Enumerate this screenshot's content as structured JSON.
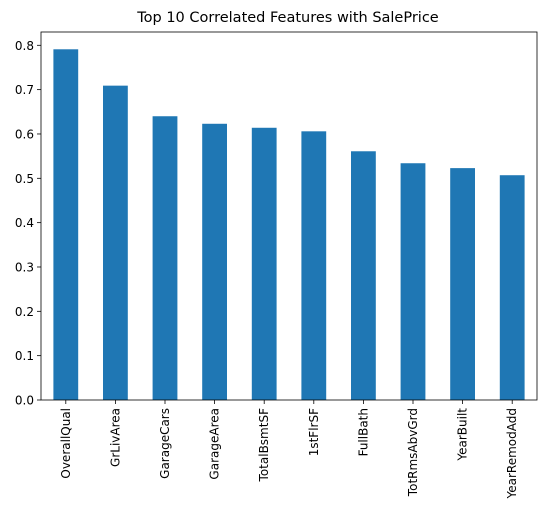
{
  "chart_data": {
    "type": "bar",
    "title": "Top 10 Correlated Features with SalePrice",
    "xlabel": "",
    "ylabel": "",
    "categories": [
      "OverallQual",
      "GrLivArea",
      "GarageCars",
      "GarageArea",
      "TotalBsmtSF",
      "1stFlrSF",
      "FullBath",
      "TotRmsAbvGrd",
      "YearBuilt",
      "YearRemodAdd"
    ],
    "values": [
      0.791,
      0.709,
      0.64,
      0.623,
      0.614,
      0.606,
      0.561,
      0.534,
      0.523,
      0.507
    ],
    "ylim": [
      0,
      0.83
    ],
    "yticks": [
      0.0,
      0.1,
      0.2,
      0.3,
      0.4,
      0.5,
      0.6,
      0.7,
      0.8
    ],
    "ytick_labels": [
      "0.0",
      "0.1",
      "0.2",
      "0.3",
      "0.4",
      "0.5",
      "0.6",
      "0.7",
      "0.8"
    ],
    "grid": false,
    "legend": false,
    "bar_color": "#1f77b4"
  }
}
